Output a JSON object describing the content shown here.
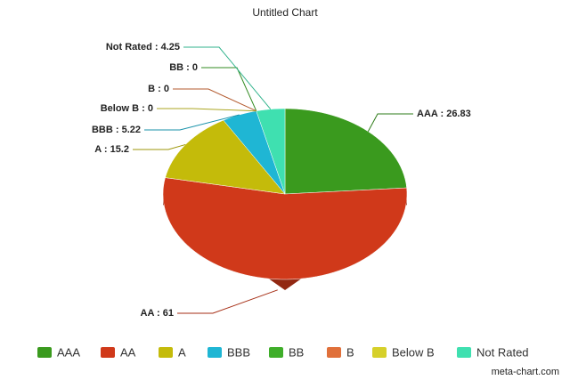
{
  "chart_data": {
    "type": "pie",
    "title": "Untitled Chart",
    "categories": [
      "AAA",
      "AA",
      "A",
      "BBB",
      "BB",
      "B",
      "Below B",
      "Not Rated"
    ],
    "values": [
      26.83,
      61,
      15.2,
      5.22,
      0,
      0,
      0,
      4.25
    ],
    "value_labels": [
      "AAA : 26.83",
      "AA : 61",
      "A : 15.2",
      "BBB : 5.22",
      "BB : 0",
      "B : 0",
      "Below B : 0",
      "Not Rated : 4.25"
    ],
    "colors": [
      "#3a9a1e",
      "#d0391a",
      "#c4bb0a",
      "#1fb6d4",
      "#3fae2a",
      "#e0703a",
      "#d6d02a",
      "#3fe0b0"
    ],
    "credit": "meta-chart.com"
  }
}
